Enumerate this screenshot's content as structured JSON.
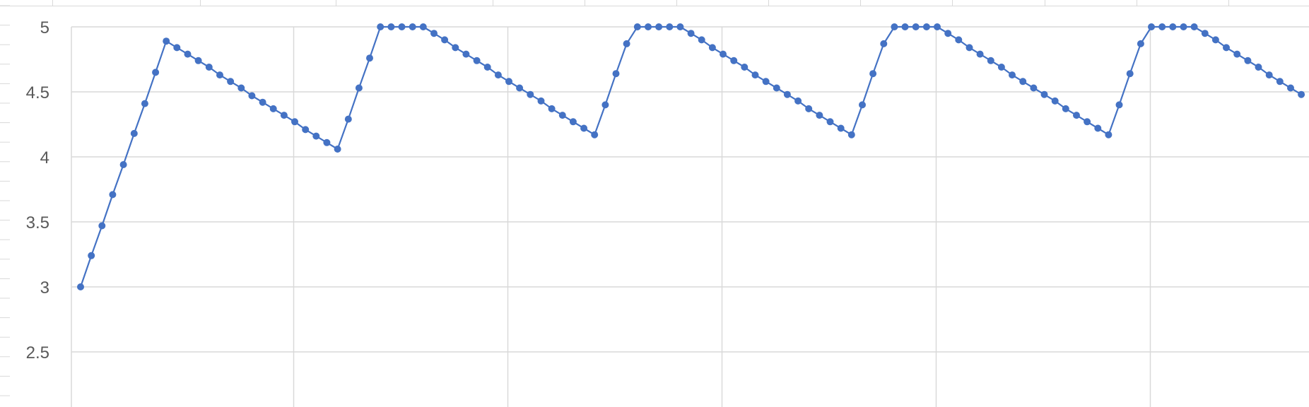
{
  "chart_data": {
    "type": "line",
    "title": "",
    "xlabel": "",
    "ylabel": "",
    "y_ticks": [
      "5",
      "4.5",
      "4",
      "3.5",
      "3",
      "2.5"
    ],
    "y_tick_values": [
      5,
      4.5,
      4,
      3.5,
      3,
      2.5
    ],
    "ylim": [
      2.0,
      5.0
    ],
    "xlim": [
      0,
      115.5
    ],
    "x_major_gridlines_at": [
      20,
      40,
      60,
      80,
      100
    ],
    "grid": true,
    "legend": "none",
    "series": [
      {
        "color": "#4472c4",
        "marker": "circle",
        "values": [
          3.0,
          3.24,
          3.47,
          3.71,
          3.94,
          4.18,
          4.41,
          4.65,
          4.89,
          4.84,
          4.79,
          4.74,
          4.69,
          4.63,
          4.58,
          4.53,
          4.47,
          4.42,
          4.37,
          4.32,
          4.27,
          4.21,
          4.16,
          4.11,
          4.06,
          4.29,
          4.53,
          4.76,
          5.0,
          5.0,
          5.0,
          5.0,
          5.0,
          4.95,
          4.9,
          4.84,
          4.79,
          4.74,
          4.69,
          4.63,
          4.58,
          4.53,
          4.48,
          4.43,
          4.37,
          4.32,
          4.27,
          4.22,
          4.17,
          4.4,
          4.64,
          4.87,
          5.0,
          5.0,
          5.0,
          5.0,
          5.0,
          4.95,
          4.9,
          4.84,
          4.79,
          4.74,
          4.69,
          4.63,
          4.58,
          4.53,
          4.48,
          4.43,
          4.37,
          4.32,
          4.27,
          4.22,
          4.17,
          4.4,
          4.64,
          4.87,
          5.0,
          5.0,
          5.0,
          5.0,
          5.0,
          4.95,
          4.9,
          4.84,
          4.79,
          4.74,
          4.69,
          4.63,
          4.58,
          4.53,
          4.48,
          4.43,
          4.37,
          4.32,
          4.27,
          4.22,
          4.17,
          4.4,
          4.64,
          4.87,
          5.0,
          5.0,
          5.0,
          5.0,
          5.0,
          4.95,
          4.9,
          4.84,
          4.79,
          4.74,
          4.69,
          4.63,
          4.58,
          4.53,
          4.48
        ]
      }
    ]
  }
}
